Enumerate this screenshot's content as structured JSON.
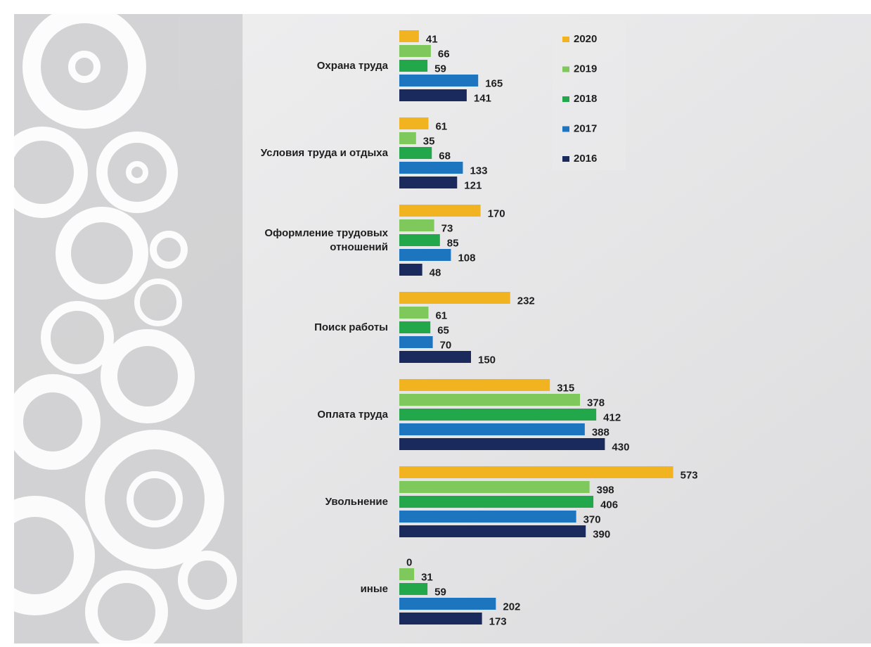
{
  "chart_data": {
    "type": "bar",
    "orientation": "horizontal",
    "categories": [
      "Охрана труда",
      "Условия труда и отдыха",
      "Оформление трудовых отношений",
      "Поиск работы",
      "Оплата труда",
      "Увольнение",
      "иные"
    ],
    "series": [
      {
        "name": "2020",
        "color": "#f2b320",
        "values": [
          41,
          61,
          170,
          232,
          315,
          573,
          0
        ]
      },
      {
        "name": "2019",
        "color": "#7ec85c",
        "values": [
          66,
          35,
          73,
          61,
          378,
          398,
          31
        ]
      },
      {
        "name": "2018",
        "color": "#22a74a",
        "values": [
          59,
          68,
          85,
          65,
          412,
          406,
          59
        ]
      },
      {
        "name": "2017",
        "color": "#1d75c0",
        "values": [
          165,
          133,
          108,
          70,
          388,
          370,
          202
        ]
      },
      {
        "name": "2016",
        "color": "#1b2a5c",
        "values": [
          141,
          121,
          48,
          150,
          430,
          390,
          173
        ]
      }
    ]
  }
}
